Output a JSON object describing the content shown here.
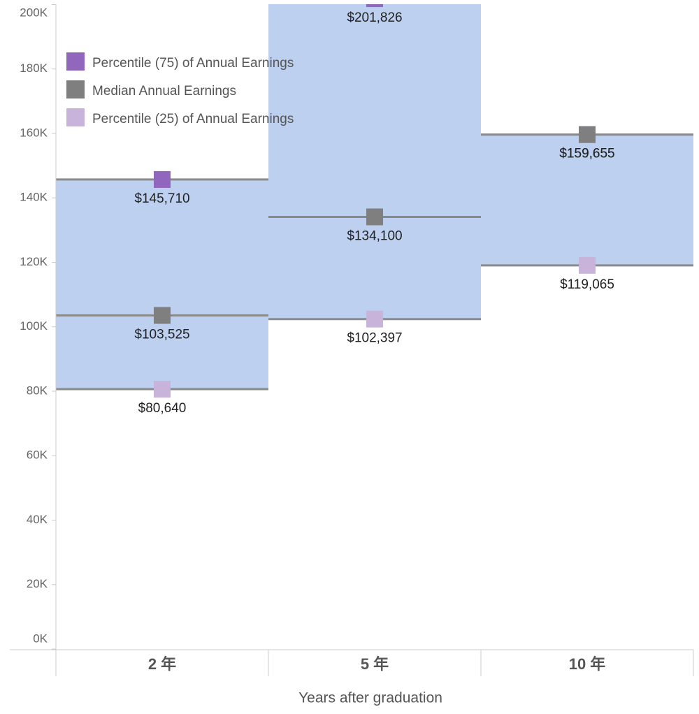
{
  "chart_data": {
    "type": "band-range",
    "x_label": "Years after graduation",
    "categories": [
      "2 年",
      "5 年",
      "10 年"
    ],
    "series": [
      {
        "name": "Percentile (75) of Annual Earnings",
        "color": "#9167bd",
        "values": [
          145710,
          201826,
          159655
        ],
        "value_labels": [
          "$145,710",
          "$201,826",
          "$159,655"
        ]
      },
      {
        "name": "Median Annual Earnings",
        "color": "#7f7f7f",
        "values": [
          103525,
          134100,
          159655
        ],
        "value_labels": [
          "$103,525",
          "$134,100",
          "$159,655"
        ]
      },
      {
        "name": "Percentile (25) of Annual Earnings",
        "color": "#c8b4db",
        "values": [
          80640,
          102397,
          119065
        ],
        "value_labels": [
          "$80,640",
          "$102,397",
          "$119,065"
        ]
      }
    ],
    "band_color": "#bdd0f0",
    "line_color": "#8a8a8a",
    "ylim": [
      0,
      200000
    ],
    "yticks": [
      {
        "value": 0,
        "label": "0K"
      },
      {
        "value": 20000,
        "label": "20K"
      },
      {
        "value": 40000,
        "label": "40K"
      },
      {
        "value": 60000,
        "label": "60K"
      },
      {
        "value": 80000,
        "label": "80K"
      },
      {
        "value": 100000,
        "label": "100K"
      },
      {
        "value": 120000,
        "label": "120K"
      },
      {
        "value": 140000,
        "label": "140K"
      },
      {
        "value": 160000,
        "label": "160K"
      },
      {
        "value": 180000,
        "label": "180K"
      },
      {
        "value": 200000,
        "label": "200K"
      }
    ]
  }
}
